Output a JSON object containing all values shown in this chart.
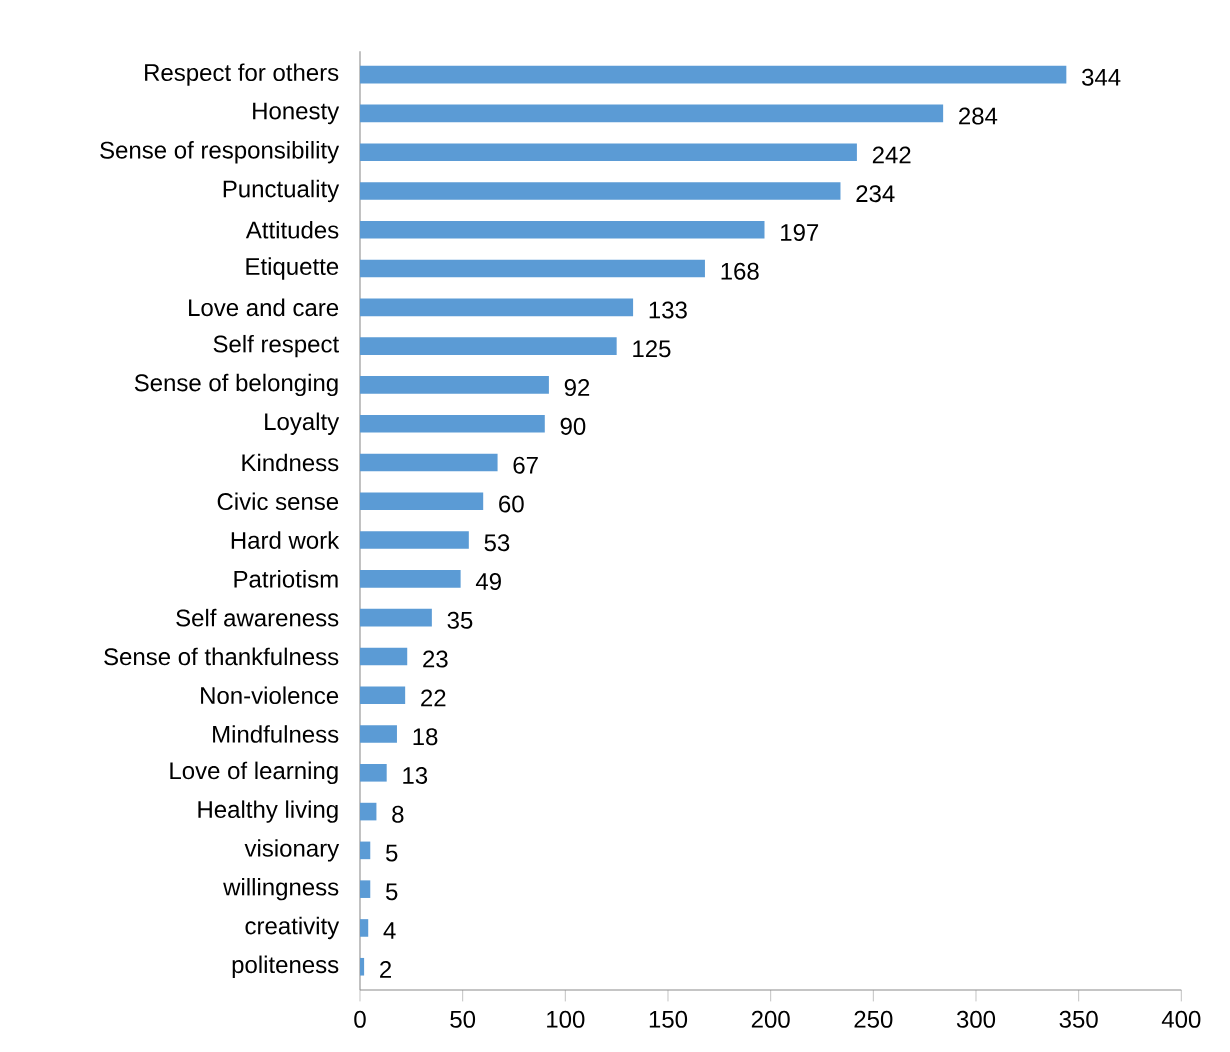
{
  "chart_data": {
    "type": "bar",
    "orientation": "horizontal",
    "categories": [
      "Respect for others",
      "Honesty",
      "Sense of responsibility",
      "Punctuality",
      "Attitudes",
      "Etiquette",
      "Love and care",
      "Self respect",
      "Sense of belonging",
      "Loyalty",
      "Kindness",
      "Civic sense",
      "Hard work",
      "Patriotism",
      "Self awareness",
      "Sense of thankfulness",
      "Non-violence",
      "Mindfulness",
      "Love of learning",
      "Healthy living",
      "visionary",
      "willingness",
      "creativity",
      "politeness"
    ],
    "values": [
      344,
      284,
      242,
      234,
      197,
      168,
      133,
      125,
      92,
      90,
      67,
      60,
      53,
      49,
      35,
      23,
      22,
      18,
      13,
      8,
      5,
      5,
      4,
      2
    ],
    "color": "#5b9bd5",
    "data_labels": true,
    "xlim": [
      0,
      400
    ],
    "xticks": [
      0,
      50,
      100,
      150,
      200,
      250,
      300,
      350,
      400
    ]
  }
}
